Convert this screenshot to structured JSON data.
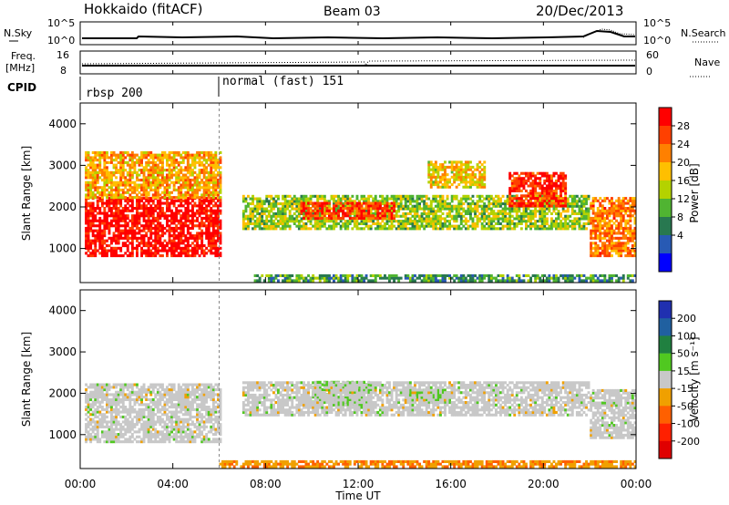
{
  "header": {
    "station": "Hokkaido (fitACF)",
    "beam": "Beam 03",
    "date": "20/Dec/2013"
  },
  "panels": {
    "nsky_label": "N.Sky",
    "nsky_ticks": [
      "10^5",
      "10^0"
    ],
    "nsearch_label": "N.Search",
    "nsearch_ticks": [
      "10^5",
      "10^0"
    ],
    "freq_label": [
      "Freq.",
      "[MHz]"
    ],
    "freq_ticks": [
      "16",
      "8"
    ],
    "nave_label": "Nave",
    "nave_ticks": [
      "60",
      "0"
    ],
    "cpid_label": "CPID",
    "cpid_segments": [
      {
        "name": "rbsp 200",
        "start_hour": 0
      },
      {
        "name": "normal (fast) 151",
        "start_hour": 6
      }
    ]
  },
  "colorbars": {
    "power": {
      "label": "Power [dB]",
      "ticks": [
        "28",
        "24",
        "20",
        "16",
        "12",
        "8",
        "4"
      ],
      "colors": [
        "#ff0000",
        "#ff4000",
        "#ff8000",
        "#ffbf00",
        "#b4d200",
        "#50b432",
        "#287850",
        "#285ab4",
        "#0000ff"
      ]
    },
    "velocity": {
      "label": "Velocity [m s⁻¹]",
      "ticks": [
        "200",
        "100",
        "50",
        "15",
        "-15",
        "-50",
        "-100",
        "-200"
      ],
      "colors": [
        "#2030b0",
        "#2060a0",
        "#208040",
        "#50c820",
        "#c8c8c8",
        "#f0a000",
        "#ff6000",
        "#ff2000",
        "#e00000"
      ]
    }
  },
  "chart_data": [
    {
      "type": "heatmap",
      "title": "Power",
      "ylabel": "Slant Range [km]",
      "xlabel": "Time UT",
      "x_ticks": [
        "00:00",
        "04:00",
        "08:00",
        "12:00",
        "16:00",
        "20:00",
        "00:00"
      ],
      "xlim_hours": [
        0,
        24
      ],
      "ylim_km": [
        180,
        4500
      ],
      "y_ticks": [
        1000,
        2000,
        3000,
        4000
      ],
      "color_scale_db": [
        0,
        30
      ],
      "regions": [
        {
          "t0": 0.2,
          "t1": 6.0,
          "r0": 800,
          "r1": 2200,
          "value": 29
        },
        {
          "t0": 0.2,
          "t1": 6.0,
          "r0": 2200,
          "r1": 3300,
          "value": 20
        },
        {
          "t0": 7.0,
          "t1": 22.0,
          "r0": 1450,
          "r1": 2250,
          "value": 14
        },
        {
          "t0": 9.5,
          "t1": 13.5,
          "r0": 1700,
          "r1": 2100,
          "value": 26
        },
        {
          "t0": 15.0,
          "t1": 17.5,
          "r0": 2450,
          "r1": 3100,
          "value": 18
        },
        {
          "t0": 18.5,
          "t1": 21.0,
          "r0": 2000,
          "r1": 2800,
          "value": 27
        },
        {
          "t0": 22.0,
          "t1": 24.0,
          "r0": 800,
          "r1": 2200,
          "value": 22
        },
        {
          "t0": 7.5,
          "t1": 24.0,
          "r0": 200,
          "r1": 350,
          "value": 10
        }
      ]
    },
    {
      "type": "heatmap",
      "title": "Velocity",
      "ylabel": "Slant Range [km]",
      "xlabel": "Time UT",
      "x_ticks": [
        "00:00",
        "04:00",
        "08:00",
        "12:00",
        "16:00",
        "20:00",
        "00:00"
      ],
      "xlim_hours": [
        0,
        24
      ],
      "ylim_km": [
        180,
        4500
      ],
      "y_ticks": [
        1000,
        2000,
        3000,
        4000
      ],
      "color_scale_ms": [
        -200,
        200
      ],
      "regions": [
        {
          "t0": 0.2,
          "t1": 6.0,
          "r0": 800,
          "r1": 2200,
          "value": 0
        },
        {
          "t0": 10.0,
          "t1": 12.5,
          "r0": 1700,
          "r1": 2250,
          "value": 40
        },
        {
          "t0": 14.0,
          "t1": 16.0,
          "r0": 1750,
          "r1": 2100,
          "value": 40
        },
        {
          "t0": 7.0,
          "t1": 22.0,
          "r0": 1450,
          "r1": 2250,
          "value": 0
        },
        {
          "t0": 22.0,
          "t1": 24.0,
          "r0": 900,
          "r1": 2100,
          "value": 0
        },
        {
          "t0": 6.0,
          "t1": 24.0,
          "r0": 200,
          "r1": 350,
          "value": -60
        }
      ]
    }
  ]
}
